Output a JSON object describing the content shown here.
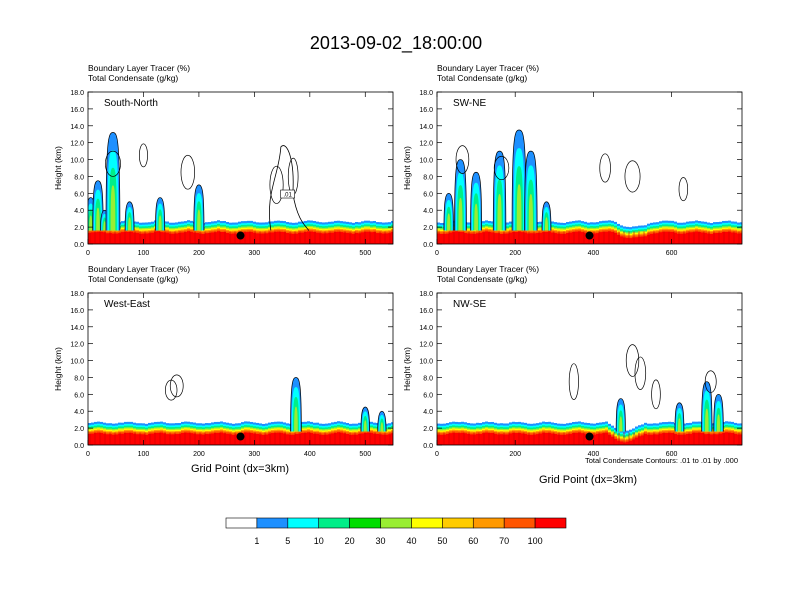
{
  "title": "2013-09-02_18:00:00",
  "panel_header_line1": "Boundary Layer Tracer   (%)",
  "panel_header_line2": "Total Condensate   (g/kg)",
  "ylabel": "Height (km)",
  "xlabel": "Grid Point (dx=3km)",
  "footnote": "Total Condensate Contours: .01 to .01 by .000",
  "contour_label": ".01",
  "colorbar": {
    "labels": [
      "1",
      "5",
      "10",
      "20",
      "30",
      "40",
      "50",
      "60",
      "70",
      "100"
    ],
    "colors": [
      "#ffffff",
      "#1e90ff",
      "#00ffff",
      "#00ee88",
      "#00dd00",
      "#99ee33",
      "#ffff00",
      "#ffcc00",
      "#ff9900",
      "#ff5500",
      "#ff0000"
    ]
  },
  "chart_data": [
    {
      "type": "heatmap",
      "name": "South-North",
      "xlim": [
        0,
        550
      ],
      "ylim": [
        0,
        18
      ],
      "xticks": [
        0,
        100,
        200,
        300,
        400,
        500
      ],
      "yticks": [
        "0.0",
        "2.0",
        "4.0",
        "6.0",
        "8.0",
        "10.0",
        "12.0",
        "14.0",
        "16.0",
        "18.0"
      ],
      "marker": [
        275,
        1.0
      ],
      "plumes": [
        [
          5,
          5.5
        ],
        [
          18,
          7.5
        ],
        [
          30,
          4.0
        ],
        [
          45,
          13.2
        ],
        [
          75,
          5.0
        ],
        [
          130,
          5.5
        ],
        [
          200,
          7.0
        ]
      ],
      "clouds": [
        [
          45,
          9.5
        ],
        [
          100,
          10.5
        ],
        [
          180,
          8.5
        ],
        [
          340,
          7.0
        ],
        [
          370,
          8.0
        ]
      ]
    },
    {
      "type": "heatmap",
      "name": "SW-NE",
      "xlim": [
        0,
        780
      ],
      "ylim": [
        0,
        18
      ],
      "xticks": [
        0,
        200,
        400,
        600
      ],
      "yticks": [
        "0.0",
        "2.0",
        "4.0",
        "6.0",
        "8.0",
        "10.0",
        "12.0",
        "14.0",
        "16.0",
        "18.0"
      ],
      "marker": [
        390,
        1.0
      ],
      "plumes": [
        [
          30,
          6.0
        ],
        [
          60,
          10.0
        ],
        [
          100,
          8.5
        ],
        [
          160,
          11.0
        ],
        [
          210,
          13.5
        ],
        [
          240,
          11.0
        ],
        [
          280,
          5.0
        ]
      ],
      "clouds": [
        [
          65,
          10.0
        ],
        [
          165,
          9.0
        ],
        [
          430,
          9.0
        ],
        [
          500,
          8.0
        ],
        [
          630,
          6.5
        ]
      ]
    },
    {
      "type": "heatmap",
      "name": "West-East",
      "xlim": [
        0,
        550
      ],
      "ylim": [
        0,
        18
      ],
      "xticks": [
        0,
        100,
        200,
        300,
        400,
        500
      ],
      "yticks": [
        "0.0",
        "2.0",
        "4.0",
        "6.0",
        "8.0",
        "10.0",
        "12.0",
        "14.0",
        "16.0",
        "18.0"
      ],
      "marker": [
        275,
        1.0
      ],
      "plumes": [
        [
          375,
          8.0
        ],
        [
          500,
          4.5
        ],
        [
          530,
          4.0
        ]
      ],
      "clouds": [
        [
          150,
          6.5
        ],
        [
          160,
          7.0
        ]
      ]
    },
    {
      "type": "heatmap",
      "name": "NW-SE",
      "xlim": [
        0,
        780
      ],
      "ylim": [
        0,
        18
      ],
      "xticks": [
        0,
        200,
        400,
        600
      ],
      "yticks": [
        "0.0",
        "2.0",
        "4.0",
        "6.0",
        "8.0",
        "10.0",
        "12.0",
        "14.0",
        "16.0",
        "18.0"
      ],
      "marker": [
        390,
        1.0
      ],
      "plumes": [
        [
          470,
          5.5
        ],
        [
          620,
          5.0
        ],
        [
          690,
          7.5
        ],
        [
          720,
          6.0
        ]
      ],
      "clouds": [
        [
          350,
          7.5
        ],
        [
          500,
          10.0
        ],
        [
          520,
          8.5
        ],
        [
          560,
          6.0
        ],
        [
          700,
          7.5
        ]
      ]
    }
  ]
}
